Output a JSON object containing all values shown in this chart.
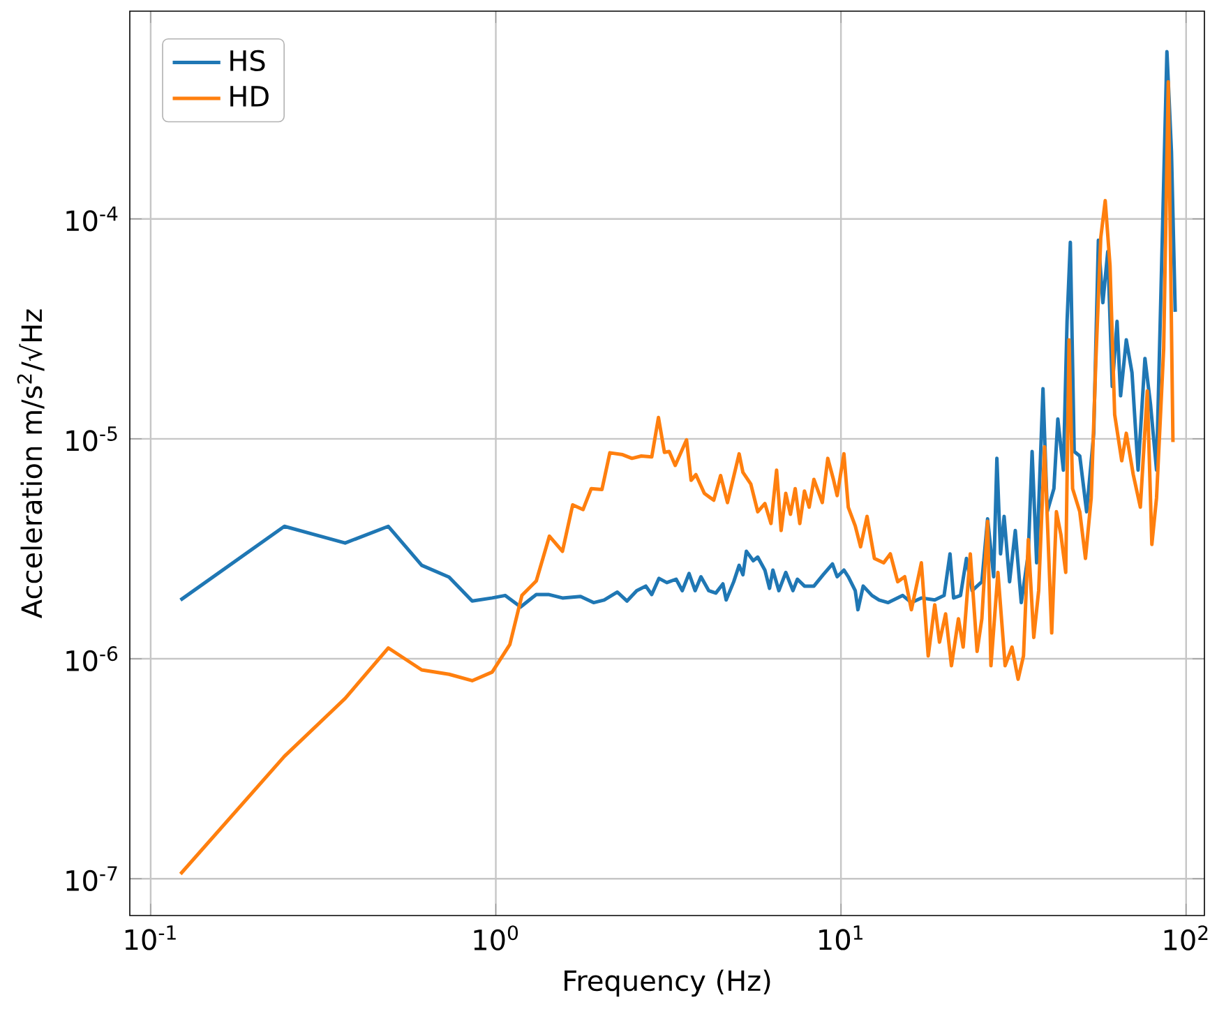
{
  "chart_data": {
    "type": "line",
    "xlabel": "Frequency (Hz)",
    "ylabel": "Acceleration m/s$^{2}$/√Hz",
    "log": "xy",
    "grid": true,
    "legend": "top left",
    "marker": "none",
    "line_style": "solid",
    "xlim": [
      0.087,
      113
    ],
    "ylim": [
      6.8e-08,
      0.00088
    ],
    "xticks": [
      {
        "value": 0.1,
        "label": "10$^{-1}$"
      },
      {
        "value": 1,
        "label": "10$^{0}$"
      },
      {
        "value": 10,
        "label": "10$^{1}$"
      },
      {
        "value": 100,
        "label": "10$^{2}$"
      }
    ],
    "yticks": [
      {
        "value": 1e-07,
        "label": "10$^{-7}$"
      },
      {
        "value": 1e-06,
        "label": "10$^{-6}$"
      },
      {
        "value": 1e-05,
        "label": "10$^{-5}$"
      },
      {
        "value": 0.0001,
        "label": "10$^{-4}$"
      }
    ],
    "series": [
      {
        "name": "HS",
        "color": "#1f77b4",
        "x": [
          0.122,
          0.244,
          0.366,
          0.488,
          0.61,
          0.732,
          0.854,
          0.976,
          1.064,
          1.18,
          1.31,
          1.42,
          1.56,
          1.76,
          1.92,
          2.06,
          2.25,
          2.4,
          2.56,
          2.72,
          2.83,
          2.97,
          3.13,
          3.33,
          3.47,
          3.63,
          3.78,
          3.93,
          4.14,
          4.34,
          4.55,
          4.65,
          4.89,
          5.07,
          5.2,
          5.32,
          5.57,
          5.74,
          6.02,
          6.21,
          6.35,
          6.61,
          6.92,
          7.26,
          7.48,
          7.84,
          8.35,
          8.88,
          9.45,
          9.75,
          10.2,
          10.5,
          11.0,
          11.2,
          11.6,
          12.3,
          12.9,
          13.7,
          15.1,
          16.0,
          17.1,
          18.7,
          19.9,
          20.7,
          21.2,
          22.2,
          23.1,
          24.0,
          25.6,
          26.6,
          27.7,
          28.3,
          29.0,
          29.7,
          30.8,
          32.0,
          33.3,
          34.9,
          35.8,
          36.9,
          38.5,
          39.6,
          41.4,
          42.5,
          44.1,
          45.2,
          46.2,
          47.4,
          49.2,
          51.5,
          54.0,
          55.7,
          57.4,
          59.3,
          61.1,
          63.1,
          64.6,
          67.1,
          69.7,
          72.6,
          76.0,
          78.9,
          82.1,
          84.8,
          88.0,
          90.7,
          93.0
        ],
        "values": [
          1.85e-06,
          4e-06,
          3.36e-06,
          4e-06,
          2.66e-06,
          2.35e-06,
          1.83e-06,
          1.89e-06,
          1.94e-06,
          1.72e-06,
          1.96e-06,
          1.96e-06,
          1.89e-06,
          1.92e-06,
          1.8e-06,
          1.85e-06,
          2.01e-06,
          1.83e-06,
          2.04e-06,
          2.14e-06,
          1.96e-06,
          2.32e-06,
          2.22e-06,
          2.3e-06,
          2.04e-06,
          2.44e-06,
          2.04e-06,
          2.36e-06,
          2.04e-06,
          1.99e-06,
          2.19e-06,
          1.85e-06,
          2.24e-06,
          2.66e-06,
          2.41e-06,
          3.08e-06,
          2.79e-06,
          2.9e-06,
          2.53e-06,
          2.09e-06,
          2.53e-06,
          2.04e-06,
          2.47e-06,
          2.04e-06,
          2.3e-06,
          2.14e-06,
          2.14e-06,
          2.41e-06,
          2.7e-06,
          2.36e-06,
          2.53e-06,
          2.36e-06,
          2.04e-06,
          1.67e-06,
          2.14e-06,
          1.94e-06,
          1.85e-06,
          1.8e-06,
          1.94e-06,
          1.8e-06,
          1.89e-06,
          1.85e-06,
          1.94e-06,
          3e-06,
          1.89e-06,
          1.94e-06,
          2.86e-06,
          2.04e-06,
          2.24e-06,
          4.33e-06,
          2.36e-06,
          8.15e-06,
          3e-06,
          4.44e-06,
          2.24e-06,
          3.83e-06,
          1.8e-06,
          3e-06,
          8.76e-06,
          2.73e-06,
          1.69e-05,
          4.66e-06,
          5.94e-06,
          1.23e-05,
          7.21e-06,
          3.42e-05,
          7.83e-05,
          8.76e-06,
          8.35e-06,
          4.66e-06,
          1.06e-05,
          8e-05,
          4.16e-05,
          7.1e-05,
          1.73e-05,
          3.42e-05,
          1.57e-05,
          2.82e-05,
          2e-05,
          7.21e-06,
          2.32e-05,
          1.43e-05,
          7.21e-06,
          null,
          0.000576,
          0.000202,
          3.78e-05
        ]
      },
      {
        "name": "HD",
        "color": "#ff7f0e",
        "x": [
          0.122,
          0.244,
          0.366,
          0.488,
          0.61,
          0.732,
          0.854,
          0.976,
          1.098,
          1.19,
          1.31,
          1.43,
          1.56,
          1.67,
          1.79,
          1.89,
          2.03,
          2.14,
          2.33,
          2.48,
          2.64,
          2.83,
          2.96,
          3.08,
          3.18,
          3.31,
          3.57,
          3.68,
          3.8,
          4.02,
          4.28,
          4.48,
          4.69,
          5.07,
          5.2,
          5.48,
          5.74,
          6.02,
          6.27,
          6.51,
          6.71,
          6.92,
          7.14,
          7.37,
          7.6,
          7.84,
          8.09,
          8.35,
          8.83,
          9.16,
          9.51,
          9.75,
          10.2,
          10.5,
          11.0,
          11.4,
          11.9,
          12.5,
          13.3,
          13.9,
          14.6,
          15.3,
          16.0,
          17.1,
          17.9,
          18.7,
          19.3,
          20.1,
          20.9,
          21.9,
          22.6,
          23.7,
          24.8,
          25.6,
          26.6,
          27.2,
          28.5,
          29.9,
          31.3,
          32.6,
          33.8,
          34.9,
          36.2,
          37.4,
          38.9,
          40.8,
          42.1,
          43.4,
          44.8,
          45.8,
          46.9,
          49.2,
          51.1,
          53.1,
          54.8,
          56.6,
          58.3,
          60.2,
          62.1,
          65.1,
          67.1,
          70.3,
          73.7,
          77.2,
          79.6,
          82.1,
          86.1,
          88.8,
          91.6
        ],
        "values": [
          1.05e-07,
          3.6e-07,
          6.6e-07,
          1.12e-06,
          8.9e-07,
          8.5e-07,
          7.95e-07,
          8.7e-07,
          1.16e-06,
          1.94e-06,
          2.26e-06,
          3.61e-06,
          3.08e-06,
          5.01e-06,
          4.77e-06,
          5.94e-06,
          5.88e-06,
          8.64e-06,
          8.47e-06,
          8.15e-06,
          8.35e-06,
          8.27e-06,
          1.25e-05,
          8.68e-06,
          8.76e-06,
          7.57e-06,
          9.9e-06,
          6.48e-06,
          6.87e-06,
          5.65e-06,
          5.26e-06,
          6.81e-06,
          5.13e-06,
          8.55e-06,
          7.04e-06,
          6.23e-06,
          4.66e-06,
          5.08e-06,
          4.12e-06,
          7.21e-06,
          3.83e-06,
          5.65e-06,
          4.54e-06,
          5.94e-06,
          4.12e-06,
          5.79e-06,
          4.89e-06,
          6.54e-06,
          5.13e-06,
          8.15e-06,
          6.54e-06,
          5.52e-06,
          8.55e-06,
          4.89e-06,
          4.02e-06,
          3.23e-06,
          4.44e-06,
          2.86e-06,
          2.73e-06,
          3e-06,
          2.24e-06,
          2.36e-06,
          1.67e-06,
          2.73e-06,
          1.03e-06,
          1.76e-06,
          1.19e-06,
          1.6e-06,
          9.3e-07,
          1.52e-06,
          1.13e-06,
          3e-06,
          1.08e-06,
          1.52e-06,
          4.22e-06,
          9.3e-07,
          2.47e-06,
          9.3e-07,
          1.13e-06,
          8.07e-07,
          1.03e-06,
          3.48e-06,
          1.25e-06,
          2.04e-06,
          9.2e-06,
          1.31e-06,
          4.66e-06,
          3.65e-06,
          2.47e-06,
          2.82e-05,
          5.94e-06,
          4.66e-06,
          2.86e-06,
          5.39e-06,
          2.32e-05,
          8.22e-05,
          0.000121,
          6.14e-05,
          1.29e-05,
          7.95e-06,
          1.06e-05,
          6.87e-06,
          4.89e-06,
          1.65e-05,
          3.31e-06,
          5.39e-06,
          2.56e-05,
          0.00042,
          9.66e-06
        ]
      }
    ]
  }
}
